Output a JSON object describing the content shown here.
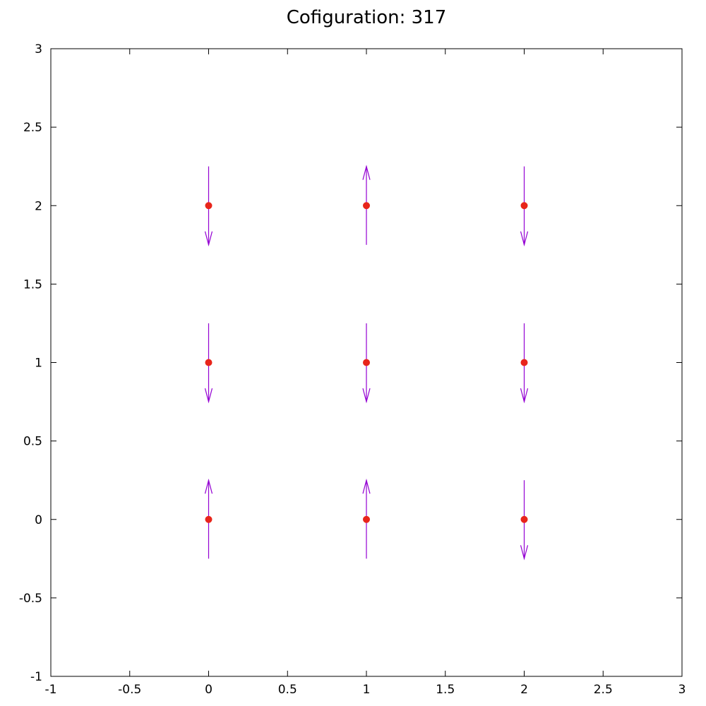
{
  "chart_data": {
    "type": "scatter",
    "title": "Cofiguration: 317",
    "xlabel": "",
    "ylabel": "",
    "xlim": [
      -1,
      3
    ],
    "ylim": [
      -1,
      3
    ],
    "xticks": [
      "-1",
      "-0.5",
      "0",
      "0.5",
      "1",
      "1.5",
      "2",
      "2.5",
      "3"
    ],
    "yticks": [
      "-1",
      "-0.5",
      "0",
      "0.5",
      "1",
      "1.5",
      "2",
      "2.5",
      "3"
    ],
    "grid": false,
    "point_color": "#e8251b",
    "arrow_color": "#9400d3",
    "arrow_half_length": 0.25,
    "points": [
      {
        "x": 0,
        "y": 2,
        "spin": "down"
      },
      {
        "x": 1,
        "y": 2,
        "spin": "up"
      },
      {
        "x": 2,
        "y": 2,
        "spin": "down"
      },
      {
        "x": 0,
        "y": 1,
        "spin": "down"
      },
      {
        "x": 1,
        "y": 1,
        "spin": "down"
      },
      {
        "x": 2,
        "y": 1,
        "spin": "down"
      },
      {
        "x": 0,
        "y": 0,
        "spin": "up"
      },
      {
        "x": 1,
        "y": 0,
        "spin": "up"
      },
      {
        "x": 2,
        "y": 0,
        "spin": "down"
      }
    ]
  }
}
